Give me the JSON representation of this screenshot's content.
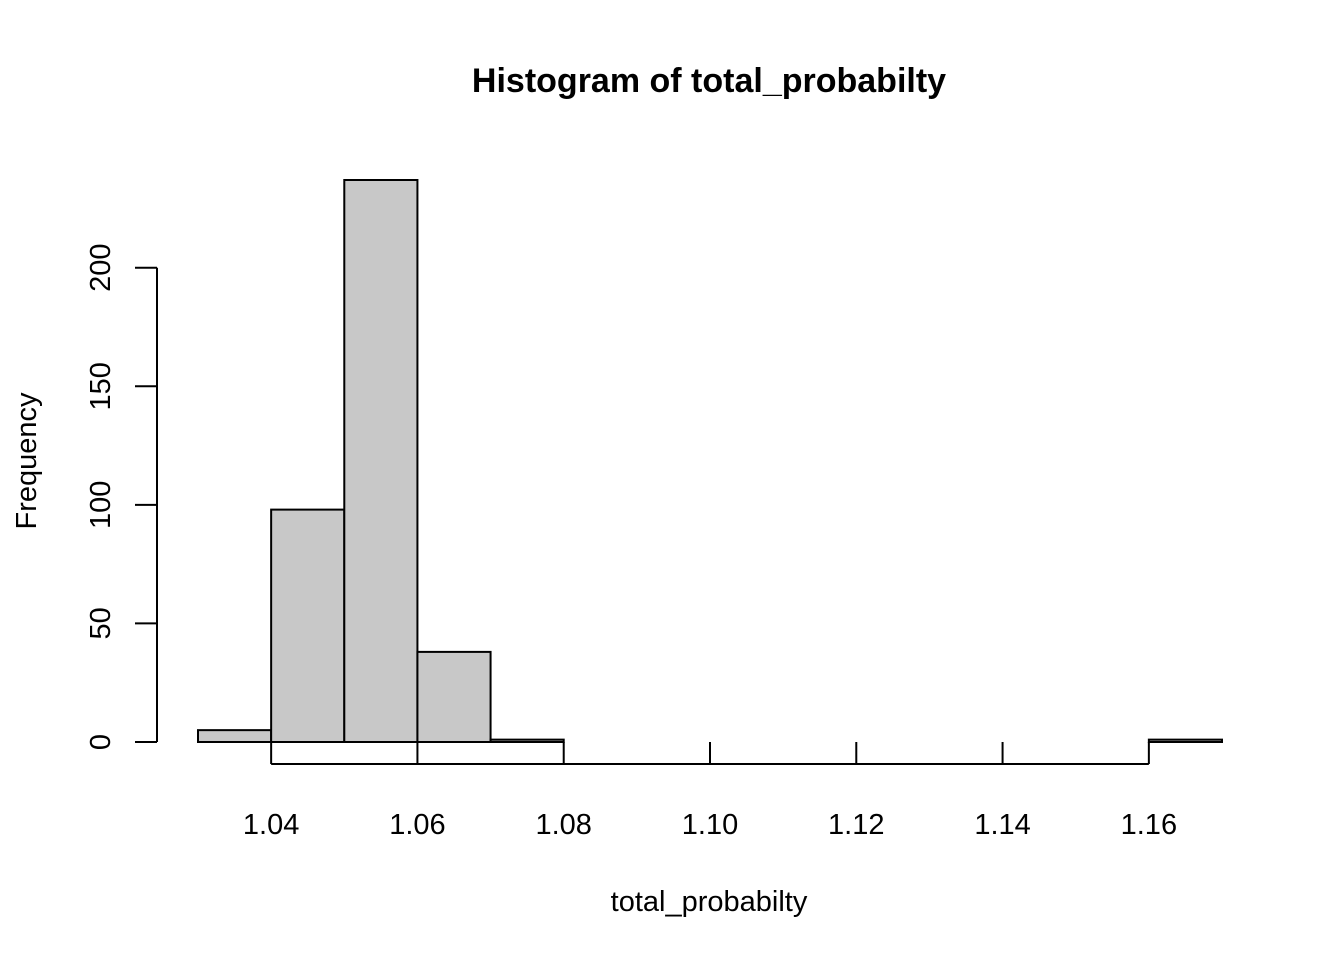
{
  "chart_data": {
    "type": "bar",
    "title": "Histogram of total_probabilty",
    "xlabel": "total_probabilty",
    "ylabel": "Frequency",
    "bins": [
      {
        "start": 1.03,
        "end": 1.04,
        "count": 5
      },
      {
        "start": 1.04,
        "end": 1.05,
        "count": 98
      },
      {
        "start": 1.05,
        "end": 1.06,
        "count": 237
      },
      {
        "start": 1.06,
        "end": 1.07,
        "count": 38
      },
      {
        "start": 1.07,
        "end": 1.08,
        "count": 1
      },
      {
        "start": 1.08,
        "end": 1.09,
        "count": 0
      },
      {
        "start": 1.09,
        "end": 1.1,
        "count": 0
      },
      {
        "start": 1.1,
        "end": 1.11,
        "count": 0
      },
      {
        "start": 1.11,
        "end": 1.12,
        "count": 0
      },
      {
        "start": 1.12,
        "end": 1.13,
        "count": 0
      },
      {
        "start": 1.13,
        "end": 1.14,
        "count": 0
      },
      {
        "start": 1.14,
        "end": 1.15,
        "count": 0
      },
      {
        "start": 1.15,
        "end": 1.16,
        "count": 0
      },
      {
        "start": 1.16,
        "end": 1.17,
        "count": 1
      }
    ],
    "xlim": [
      1.03,
      1.17
    ],
    "ylim": [
      0,
      237
    ],
    "x_ticks": [
      1.04,
      1.06,
      1.08,
      1.1,
      1.12,
      1.14,
      1.16
    ],
    "x_tick_labels": [
      "1.04",
      "1.06",
      "1.08",
      "1.10",
      "1.12",
      "1.14",
      "1.16"
    ],
    "y_ticks": [
      0,
      50,
      100,
      150,
      200
    ],
    "y_tick_labels": [
      "0",
      "50",
      "100",
      "150",
      "200"
    ],
    "bar_fill": "#c8c8c8",
    "grid": false
  }
}
